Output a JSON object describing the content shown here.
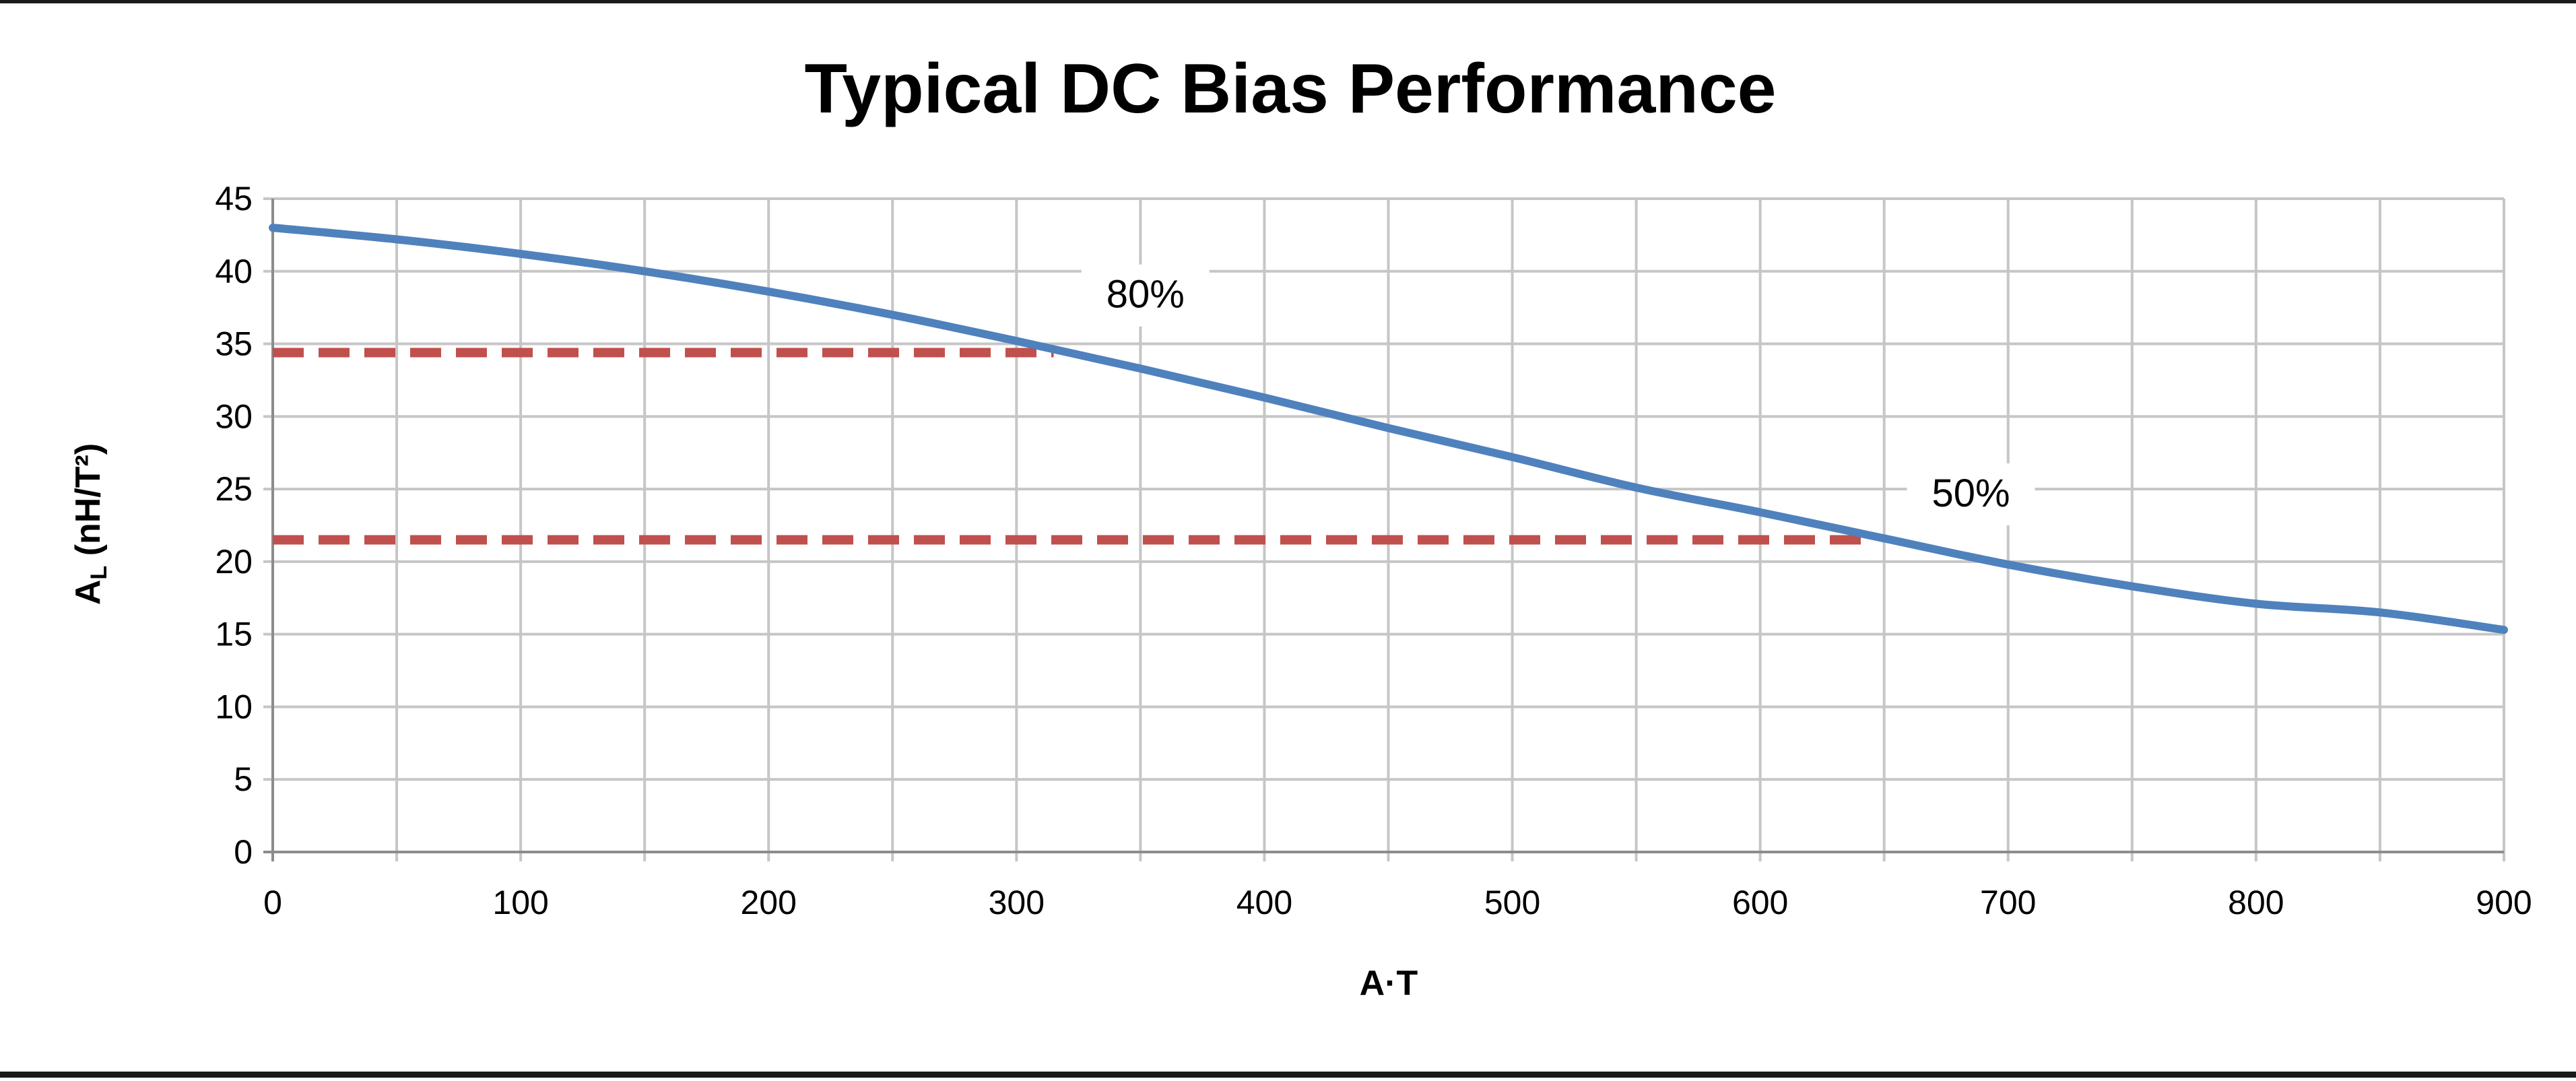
{
  "chart_data": {
    "type": "line",
    "title": "Typical DC Bias Performance",
    "xlabel": "A·T",
    "ylabel": "AL (nH/T²)",
    "ylabel_main": "A",
    "ylabel_sub": "L",
    "ylabel_rest": " (nH/T²)",
    "xlim": [
      0,
      900
    ],
    "ylim": [
      0,
      45
    ],
    "x_ticks": [
      0,
      100,
      200,
      300,
      400,
      500,
      600,
      700,
      800,
      900
    ],
    "y_ticks": [
      0,
      5,
      10,
      15,
      20,
      25,
      30,
      35,
      40,
      45
    ],
    "x_minor_step": 50,
    "grid": true,
    "legend": "none",
    "series": [
      {
        "color": "#4f81bd",
        "x": [
          0,
          50,
          100,
          150,
          200,
          250,
          300,
          350,
          400,
          450,
          500,
          550,
          600,
          650,
          700,
          750,
          800,
          850,
          900
        ],
        "y": [
          43.0,
          42.2,
          41.2,
          40.0,
          38.6,
          37.0,
          35.2,
          33.3,
          31.3,
          29.2,
          27.2,
          25.1,
          23.4,
          21.6,
          19.8,
          18.3,
          17.1,
          16.5,
          15.3
        ]
      }
    ],
    "reference_lines": [
      {
        "label": "80%",
        "y": 34.4,
        "x_start": 0,
        "x_end": 315,
        "color": "#c0504d"
      },
      {
        "label": "50%",
        "y": 21.5,
        "x_start": 0,
        "x_end": 643,
        "color": "#c0504d"
      }
    ],
    "annotations": [
      {
        "text": "80%",
        "x": 352,
        "y": 37.5
      },
      {
        "text": "50%",
        "x": 685,
        "y": 23.8
      }
    ]
  }
}
